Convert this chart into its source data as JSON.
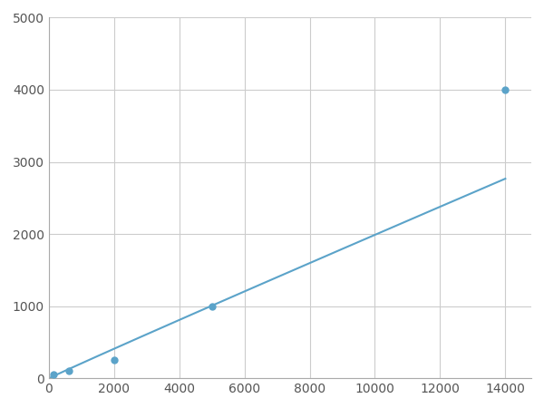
{
  "x_points": [
    156,
    625,
    2000,
    5000,
    14000
  ],
  "y_points": [
    50,
    100,
    250,
    1000,
    4000
  ],
  "line_color": "#5ba3c9",
  "marker_color": "#5ba3c9",
  "marker_size": 5,
  "line_width": 1.5,
  "xlim": [
    0,
    14800
  ],
  "ylim": [
    0,
    5000
  ],
  "xticks": [
    0,
    2000,
    4000,
    6000,
    8000,
    10000,
    12000,
    14000
  ],
  "xticklabels": [
    "0",
    "2000",
    "4000",
    "6000",
    "8000",
    "10000",
    "12000",
    "14000"
  ],
  "yticks": [
    0,
    1000,
    2000,
    3000,
    4000,
    5000
  ],
  "yticklabels": [
    "0",
    "1000",
    "2000",
    "3000",
    "4000",
    "5000"
  ],
  "grid_color": "#cccccc",
  "grid_linewidth": 0.8,
  "background_color": "#ffffff",
  "tick_fontsize": 10,
  "figsize": [
    6.0,
    4.5
  ],
  "dpi": 100
}
